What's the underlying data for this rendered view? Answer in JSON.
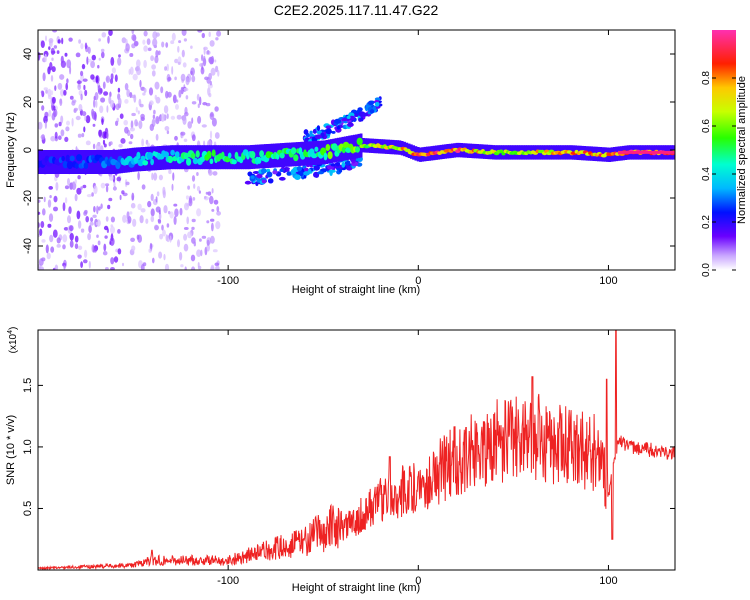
{
  "title": "C2E2.2025.117.11.47.G22",
  "chart_data": [
    {
      "type": "heatmap",
      "xlabel": "Height of straight line (km)",
      "ylabel": "Frequency (Hz)",
      "xlim": [
        -200,
        135
      ],
      "ylim": [
        -50,
        50
      ],
      "x_ticks": [
        -100,
        0,
        100
      ],
      "y_ticks": [
        -40,
        -20,
        0,
        20,
        40
      ],
      "colorbar": {
        "label": "Normalized spectral amplitude",
        "range": [
          0,
          1
        ],
        "ticks": [
          "0.0",
          "0.2",
          "0.4",
          "0.6",
          "0.8"
        ]
      },
      "ridge": [
        {
          "x": -190,
          "f": -5,
          "amp": 0.25
        },
        {
          "x": -160,
          "f": -5,
          "amp": 0.3
        },
        {
          "x": -150,
          "f": -4,
          "amp": 0.4
        },
        {
          "x": -130,
          "f": -3,
          "amp": 0.45
        },
        {
          "x": -110,
          "f": -3,
          "amp": 0.5
        },
        {
          "x": -90,
          "f": -3,
          "amp": 0.5
        },
        {
          "x": -70,
          "f": -2,
          "amp": 0.5
        },
        {
          "x": -50,
          "f": -1,
          "amp": 0.55
        },
        {
          "x": -30,
          "f": 2,
          "amp": 0.6
        },
        {
          "x": -10,
          "f": 1,
          "amp": 0.75
        },
        {
          "x": 0,
          "f": -2,
          "amp": 0.85
        },
        {
          "x": 20,
          "f": 0,
          "amp": 0.9
        },
        {
          "x": 40,
          "f": -1,
          "amp": 0.7
        },
        {
          "x": 60,
          "f": -1,
          "amp": 0.75
        },
        {
          "x": 80,
          "f": -1,
          "amp": 0.8
        },
        {
          "x": 100,
          "f": -2,
          "amp": 0.85
        },
        {
          "x": 110,
          "f": -1,
          "amp": 0.95
        },
        {
          "x": 135,
          "f": -1,
          "amp": 0.95
        }
      ],
      "upper_branch": [
        {
          "x": -60,
          "f": 5
        },
        {
          "x": -45,
          "f": 9
        },
        {
          "x": -30,
          "f": 15
        },
        {
          "x": -20,
          "f": 20
        }
      ],
      "lower_branch": [
        {
          "x": -90,
          "f": -12
        },
        {
          "x": -70,
          "f": -10
        },
        {
          "x": -50,
          "f": -8
        },
        {
          "x": -30,
          "f": -5
        }
      ]
    },
    {
      "type": "line",
      "xlabel": "Height of straight line (km)",
      "ylabel": "SNR (10 * v/v)",
      "y_multiplier": "(x10",
      "y_multiplier_exp": "4",
      "xlim": [
        -200,
        135
      ],
      "ylim": [
        0,
        1.95
      ],
      "x_ticks": [
        -100,
        0,
        100
      ],
      "y_ticks": [
        0.5,
        1.0,
        1.5
      ],
      "color": "#ee2222",
      "envelope": [
        {
          "x": -200,
          "y": 0.01
        },
        {
          "x": -150,
          "y": 0.03
        },
        {
          "x": -140,
          "y": 0.06
        },
        {
          "x": -100,
          "y": 0.06
        },
        {
          "x": -80,
          "y": 0.12
        },
        {
          "x": -60,
          "y": 0.18
        },
        {
          "x": -40,
          "y": 0.3
        },
        {
          "x": -20,
          "y": 0.55
        },
        {
          "x": 0,
          "y": 0.65
        },
        {
          "x": 20,
          "y": 0.85
        },
        {
          "x": 40,
          "y": 1.0
        },
        {
          "x": 60,
          "y": 1.05
        },
        {
          "x": 80,
          "y": 0.95
        },
        {
          "x": 95,
          "y": 0.9
        },
        {
          "x": 100,
          "y": 0.6
        },
        {
          "x": 105,
          "y": 1.05
        },
        {
          "x": 110,
          "y": 1.0
        },
        {
          "x": 135,
          "y": 0.95
        }
      ],
      "peaks": [
        {
          "x": -140,
          "y": 0.16
        },
        {
          "x": -15,
          "y": 0.92
        },
        {
          "x": 60,
          "y": 1.57
        },
        {
          "x": 99,
          "y": 1.55
        },
        {
          "x": 104,
          "y": 1.95
        },
        {
          "x": 102,
          "y": 0.25
        }
      ]
    }
  ]
}
